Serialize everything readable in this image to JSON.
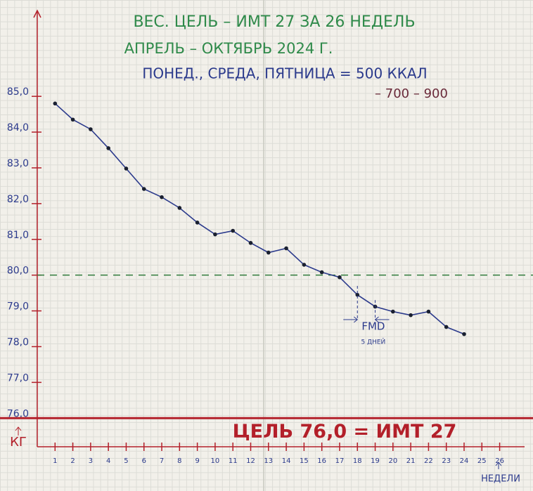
{
  "chart_data": {
    "type": "line",
    "title_lines": [
      "ВЕС. ЦЕЛЬ – ИМТ 27  ЗА  26 НЕДЕЛЬ",
      "АПРЕЛЬ – ОКТЯБРЬ  2024 Г.",
      "ПОНЕД., СРЕДА, ПЯТНИЦА = 500 ККАЛ",
      "– 700 – 900"
    ],
    "x": [
      1,
      2,
      3,
      4,
      5,
      6,
      7,
      8,
      9,
      10,
      11,
      12,
      13,
      14,
      15,
      16,
      17,
      18,
      19,
      20,
      21,
      22,
      23,
      24
    ],
    "series": [
      {
        "name": "Вес",
        "color": "#2b3a8c",
        "values": [
          84.8,
          84.35,
          84.08,
          83.55,
          82.98,
          82.41,
          82.18,
          81.88,
          81.47,
          81.14,
          81.24,
          80.9,
          80.63,
          80.75,
          80.29,
          80.08,
          79.94,
          79.45,
          79.12,
          78.98,
          78.88,
          78.98,
          78.55,
          78.35
        ]
      }
    ],
    "xlim": [
      0,
      27.4
    ],
    "xticks": [
      1,
      2,
      3,
      4,
      5,
      6,
      7,
      8,
      9,
      10,
      11,
      12,
      13,
      14,
      15,
      16,
      17,
      18,
      19,
      20,
      21,
      22,
      23,
      24,
      25,
      26
    ],
    "ylim": [
      75.2,
      87.4
    ],
    "yticks": [
      {
        "value": 85,
        "label": "85,0"
      },
      {
        "value": 84,
        "label": "84,0"
      },
      {
        "value": 83,
        "label": "83,0"
      },
      {
        "value": 82,
        "label": "82,0"
      },
      {
        "value": 81,
        "label": "81,0"
      },
      {
        "value": 80,
        "label": "80,0"
      },
      {
        "value": 79,
        "label": "79,0"
      },
      {
        "value": 78,
        "label": "78,0"
      },
      {
        "value": 77,
        "label": "77,0"
      },
      {
        "value": 76,
        "label": "76,0"
      }
    ],
    "ylabel": "КГ",
    "xlabel": "НЕДЕЛИ",
    "reference_line": 80,
    "reference_color": "#2f7a3a",
    "goal_line": 76,
    "goal_color": "#b3202a",
    "goal_text": "ЦЕЛЬ 76,0 = ИМТ 27",
    "fmd_start": 18,
    "fmd_end": 19,
    "fmd_label": "FMD",
    "fmd_duration": "5 ДНЕЙ"
  }
}
